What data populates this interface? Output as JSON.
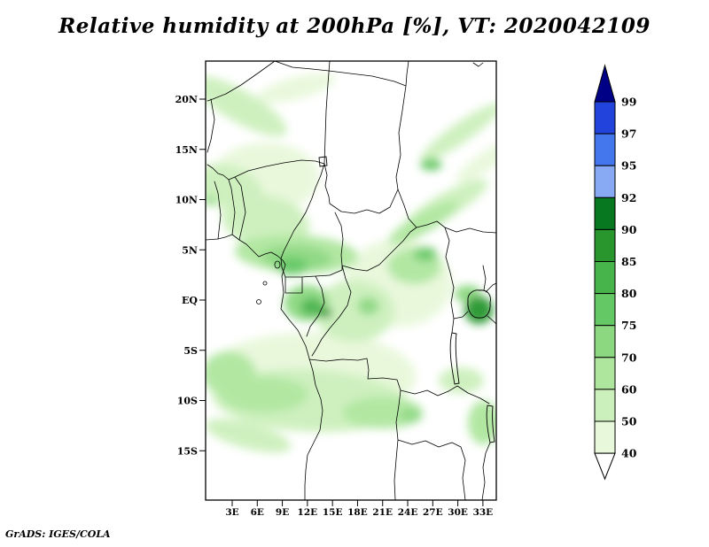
{
  "title": "Relative humidity at 200hPa [%], VT: 2020042109",
  "footer": "GrADS: IGES/COLA",
  "chart_data": {
    "type": "heatmap",
    "title": "Relative humidity at 200hPa [%], VT: 2020042109",
    "variable": "Relative humidity",
    "pressure_level": "200hPa",
    "units": "%",
    "valid_time": "2020042109",
    "map_extent": {
      "lon_min": 0,
      "lon_max": 34.6,
      "lat_min": -20,
      "lat_max": 24
    },
    "lat_ticks": [
      {
        "label": "20N",
        "lat": 20
      },
      {
        "label": "15N",
        "lat": 15
      },
      {
        "label": "10N",
        "lat": 10
      },
      {
        "label": "5N",
        "lat": 5
      },
      {
        "label": "EQ",
        "lat": 0
      },
      {
        "label": "5S",
        "lat": -5
      },
      {
        "label": "10S",
        "lat": -10
      },
      {
        "label": "15S",
        "lat": -15
      }
    ],
    "lon_ticks": [
      {
        "label": "3E",
        "lon": 3
      },
      {
        "label": "6E",
        "lon": 6
      },
      {
        "label": "9E",
        "lon": 9
      },
      {
        "label": "12E",
        "lon": 12
      },
      {
        "label": "15E",
        "lon": 15
      },
      {
        "label": "18E",
        "lon": 18
      },
      {
        "label": "21E",
        "lon": 21
      },
      {
        "label": "24E",
        "lon": 24
      },
      {
        "label": "27E",
        "lon": 27
      },
      {
        "label": "30E",
        "lon": 30
      },
      {
        "label": "33E",
        "lon": 33
      }
    ],
    "colorbar": {
      "orientation": "vertical",
      "position": "right",
      "tick_labels": [
        "99",
        "97",
        "95",
        "92",
        "90",
        "85",
        "80",
        "75",
        "70",
        "60",
        "50",
        "40"
      ],
      "colors": [
        "#000086",
        "#2244dd",
        "#4477ee",
        "#88aaf4",
        "#087820",
        "#28962d",
        "#46b44b",
        "#64c864",
        "#8cd881",
        "#aee69e",
        "#ccf0bc",
        "#e8f8da",
        "#ffffff"
      ]
    },
    "shaded_regions": [
      {
        "lon": 3.9,
        "lat": 19.3,
        "rlon": 6.4,
        "rlat": 1.6,
        "rot": 30,
        "color_index": 10
      },
      {
        "lon": 10.7,
        "lat": 21.1,
        "rlon": 4.8,
        "rlat": 1.1,
        "rot": -15,
        "color_index": 11
      },
      {
        "lon": 2.6,
        "lat": 11.2,
        "rlon": 4.2,
        "rlat": 2.2,
        "rot": 20,
        "color_index": 10
      },
      {
        "lon": 0.3,
        "lat": 9.9,
        "rlon": 0.7,
        "rlat": 0.5,
        "rot": 0,
        "color_index": 8
      },
      {
        "lon": 7.0,
        "lat": 7.8,
        "rlon": 5.3,
        "rlat": 2.6,
        "rot": 10,
        "color_index": 10
      },
      {
        "lon": 10.7,
        "lat": 4.6,
        "rlon": 7.4,
        "rlat": 1.9,
        "rot": 3,
        "color_index": 9
      },
      {
        "lon": 10.7,
        "lat": 4.2,
        "rlon": 4.2,
        "rlat": 1.2,
        "rot": 3,
        "color_index": 8
      },
      {
        "lon": 26.8,
        "lat": 13.5,
        "rlon": 1.3,
        "rlat": 0.6,
        "rot": 0,
        "color_index": 7
      },
      {
        "lon": 30.4,
        "lat": 16.7,
        "rlon": 5.8,
        "rlat": 1.0,
        "rot": -35,
        "color_index": 10
      },
      {
        "lon": 33.3,
        "lat": 13.8,
        "rlon": 4.2,
        "rlat": 0.9,
        "rot": -35,
        "color_index": 11
      },
      {
        "lon": 28.5,
        "lat": 9.4,
        "rlon": 5.8,
        "rlat": 1.2,
        "rot": -30,
        "color_index": 10
      },
      {
        "lon": 25.9,
        "lat": 7.7,
        "rlon": 4.8,
        "rlat": 1.0,
        "rot": -30,
        "color_index": 9
      },
      {
        "lon": 10.2,
        "lat": 3.4,
        "rlon": 1.9,
        "rlat": 0.9,
        "rot": 0,
        "color_index": 7
      },
      {
        "lon": 11.9,
        "lat": -0.3,
        "rlon": 2.7,
        "rlat": 1.8,
        "rot": 0,
        "color_index": 8
      },
      {
        "lon": 12.5,
        "lat": -0.7,
        "rlon": 1.3,
        "rlat": 0.9,
        "rot": 0,
        "color_index": 6
      },
      {
        "lon": 14.2,
        "lat": -1.3,
        "rlon": 0.8,
        "rlat": 0.5,
        "rot": 0,
        "color_index": 5
      },
      {
        "lon": 17.6,
        "lat": -1.1,
        "rlon": 4.8,
        "rlat": 3.1,
        "rot": 0,
        "color_index": 10
      },
      {
        "lon": 19.3,
        "lat": -0.6,
        "rlon": 1.3,
        "rlat": 0.9,
        "rot": 0,
        "color_index": 8
      },
      {
        "lon": 24.8,
        "lat": 3.4,
        "rlon": 3.2,
        "rlat": 1.8,
        "rot": 0,
        "color_index": 9
      },
      {
        "lon": 26.1,
        "lat": 4.6,
        "rlon": 1.4,
        "rlat": 0.7,
        "rot": 0,
        "color_index": 7
      },
      {
        "lon": 32.5,
        "lat": -1.0,
        "rlon": 1.7,
        "rlat": 1.4,
        "rot": 0,
        "color_index": 5
      },
      {
        "lon": 31.2,
        "lat": 0.6,
        "rlon": 1.6,
        "rlat": 0.9,
        "rot": 0,
        "color_index": 8
      },
      {
        "lon": 12.3,
        "lat": -10.0,
        "rlon": 11.7,
        "rlat": 3.1,
        "rot": 3,
        "color_index": 10
      },
      {
        "lon": 6.8,
        "lat": -9.4,
        "rlon": 5.3,
        "rlat": 1.8,
        "rot": 0,
        "color_index": 9
      },
      {
        "lon": 2.6,
        "lat": -7.3,
        "rlon": 3.2,
        "rlat": 2.2,
        "rot": 0,
        "color_index": 9
      },
      {
        "lon": 21.0,
        "lat": -11.2,
        "rlon": 4.8,
        "rlat": 1.6,
        "rot": 0,
        "color_index": 9
      },
      {
        "lon": 24.4,
        "lat": -11.5,
        "rlon": 1.3,
        "rlat": 0.7,
        "rot": 0,
        "color_index": 8
      },
      {
        "lon": 4.9,
        "lat": -13.5,
        "rlon": 5.3,
        "rlat": 1.3,
        "rot": 15,
        "color_index": 10
      },
      {
        "lon": 30.4,
        "lat": -8.0,
        "rlon": 2.7,
        "rlat": 1.3,
        "rot": 0,
        "color_index": 10
      },
      {
        "lon": 33.1,
        "lat": -12.2,
        "rlon": 1.9,
        "rlat": 2.2,
        "rot": 0,
        "color_index": 9
      },
      {
        "lon": 7.0,
        "lat": 12.2,
        "rlon": 6.4,
        "rlat": 3.5,
        "rot": 0,
        "color_index": 11
      },
      {
        "lon": 22.9,
        "lat": 1.7,
        "rlon": 6.4,
        "rlat": 4.4,
        "rot": 0,
        "color_index": 11
      },
      {
        "lon": 12.3,
        "lat": -7.6,
        "rlon": 12.7,
        "rlat": 4.4,
        "rot": 0,
        "color_index": 11
      }
    ]
  }
}
